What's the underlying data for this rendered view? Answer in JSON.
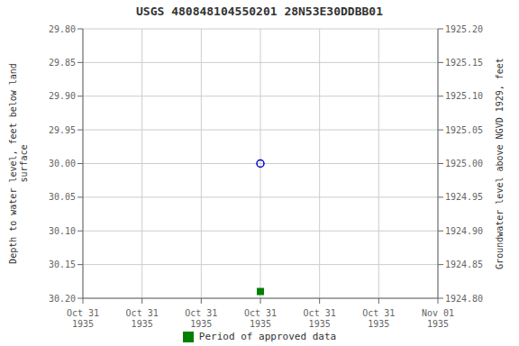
{
  "chart_data": {
    "type": "scatter",
    "title": "USGS 480848104550201 28N53E30DDBB01",
    "y_label": "Depth to water level, feet below land\nsurface",
    "y2_label": "Groundwater level above NGVD 1929, feet",
    "categories": [
      "Oct 31\n1935",
      "Oct 31\n1935",
      "Oct 31\n1935",
      "Oct 31\n1935",
      "Oct 31\n1935",
      "Oct 31\n1935",
      "Nov 01\n1935"
    ],
    "series": [
      {
        "color": "#0000cc",
        "marker": "circle",
        "values": [
          null,
          null,
          null,
          30.0,
          null,
          null,
          null
        ]
      },
      {
        "name": "Period of approved data",
        "color": "#008000",
        "marker": "square",
        "values": [
          null,
          null,
          null,
          30.19,
          null,
          null,
          null
        ]
      }
    ],
    "ylim": [
      30.2,
      29.8
    ],
    "yticks": [
      {
        "value": 29.8,
        "label": "29.80"
      },
      {
        "value": 29.85,
        "label": "29.85"
      },
      {
        "value": 29.9,
        "label": "29.90"
      },
      {
        "value": 29.95,
        "label": "29.95"
      },
      {
        "value": 30.0,
        "label": "30.00"
      },
      {
        "value": 30.05,
        "label": "30.05"
      },
      {
        "value": 30.1,
        "label": "30.10"
      },
      {
        "value": 30.15,
        "label": "30.15"
      },
      {
        "value": 30.2,
        "label": "30.20"
      }
    ],
    "y2lim": [
      1924.8,
      1925.2
    ],
    "y2ticks": [
      {
        "value": 1925.2,
        "label": "1925.20"
      },
      {
        "value": 1925.15,
        "label": "1925.15"
      },
      {
        "value": 1925.1,
        "label": "1925.10"
      },
      {
        "value": 1925.05,
        "label": "1925.05"
      },
      {
        "value": 1925.0,
        "label": "1925.00"
      },
      {
        "value": 1924.95,
        "label": "1924.95"
      },
      {
        "value": 1924.9,
        "label": "1924.90"
      },
      {
        "value": 1924.85,
        "label": "1924.85"
      },
      {
        "value": 1924.8,
        "label": "1924.80"
      }
    ],
    "grid": true,
    "legend": "bottom"
  }
}
